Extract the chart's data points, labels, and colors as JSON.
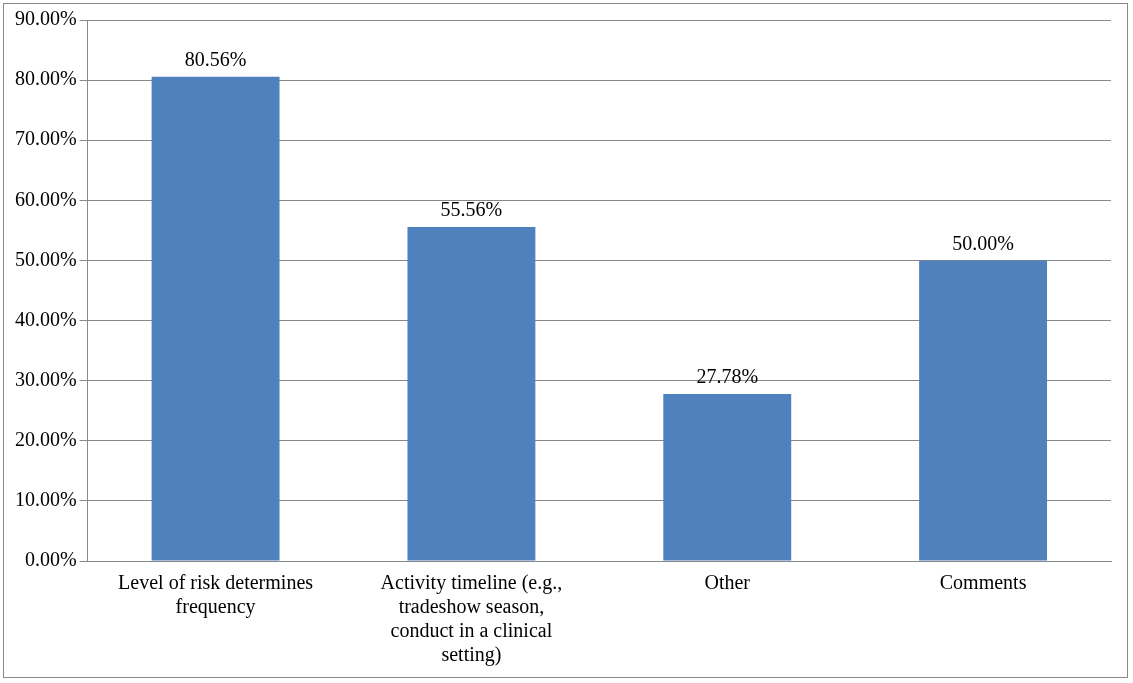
{
  "chart_data": {
    "type": "bar",
    "categories": [
      "Level of risk determines frequency",
      "Activity timeline (e.g., tradeshow season, conduct in a clinical setting)",
      "Other",
      "Comments"
    ],
    "values": [
      80.56,
      55.56,
      27.78,
      50.0
    ],
    "value_labels": [
      "80.56%",
      "55.56%",
      "27.78%",
      "50.00%"
    ],
    "color": "#4f81bd",
    "ylim": [
      0,
      90
    ],
    "yticks": [
      {
        "value": 0,
        "label": "0.00%"
      },
      {
        "value": 10,
        "label": "10.00%"
      },
      {
        "value": 20,
        "label": "20.00%"
      },
      {
        "value": 30,
        "label": "30.00%"
      },
      {
        "value": 40,
        "label": "40.00%"
      },
      {
        "value": 50,
        "label": "50.00%"
      },
      {
        "value": 60,
        "label": "60.00%"
      },
      {
        "value": 70,
        "label": "70.00%"
      },
      {
        "value": 80,
        "label": "80.00%"
      },
      {
        "value": 90,
        "label": "90.00%"
      }
    ],
    "grid": "y",
    "legend": false
  }
}
